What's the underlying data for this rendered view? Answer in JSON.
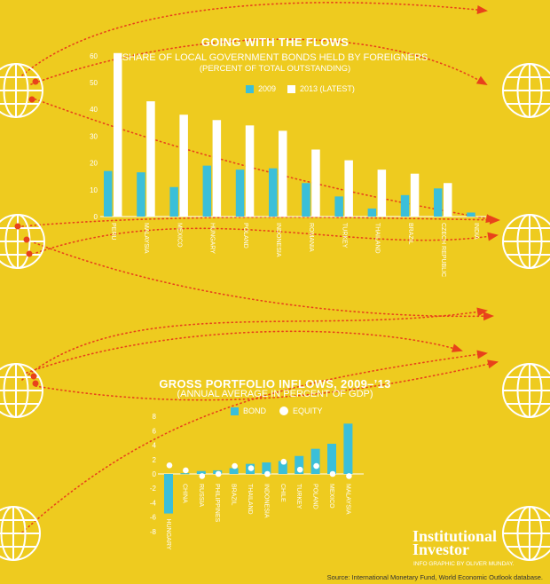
{
  "colors": {
    "background": "#eecb1f",
    "bond_cyan": "#3bbfd9",
    "white": "#ffffff",
    "arrow_red": "#e8421b"
  },
  "icons": [
    "globe-icon",
    "arrow-icon"
  ],
  "chart_data": [
    {
      "type": "bar",
      "title": "GOING WITH THE FLOWS",
      "subtitle": "SHARE OF LOCAL GOVERNMENT BONDS HELD BY FOREIGNERS",
      "subtitle2": "(PERCENT OF TOTAL OUTSTANDING)",
      "categories": [
        "PERU",
        "MALAYSIA",
        "MEXICO",
        "HUNGARY",
        "POLAND",
        "INDONESIA",
        "ROMANIA",
        "TURKEY",
        "THAILAND",
        "BRAZIL",
        "CZECH REPUBLIC",
        "INDIA"
      ],
      "series": [
        {
          "name": "2009",
          "values": [
            17,
            16.5,
            11,
            19,
            17.5,
            18,
            12.5,
            7.5,
            3,
            8,
            10.5,
            1.5
          ]
        },
        {
          "name": "2013 (LATEST)",
          "values": [
            61,
            43,
            38,
            36,
            34,
            32,
            25,
            21,
            17.5,
            16,
            12.5,
            0
          ]
        }
      ],
      "ylim": [
        0,
        60
      ],
      "yticks": [
        0,
        10,
        20,
        30,
        40,
        50,
        60
      ],
      "grid": false
    },
    {
      "type": "bar",
      "title": "GROSS PORTFOLIO INFLOWS, 2009–’13",
      "subtitle": "(ANNUAL AVERAGE IN PERCENT OF GDP)",
      "categories": [
        "HUNGARY",
        "CHINA",
        "RUSSIA",
        "PHILIPPINES",
        "BRAZIL",
        "THAILAND",
        "INDONESIA",
        "CHILE",
        "TURKEY",
        "POLAND",
        "MEXICO",
        "MALAYSIA"
      ],
      "series": [
        {
          "name": "BOND",
          "values": [
            -5.5,
            0.1,
            0.4,
            0.5,
            0.8,
            1.4,
            1.6,
            1.8,
            2.5,
            3.5,
            4.2,
            7
          ]
        },
        {
          "name": "EQUITY",
          "values": [
            1.2,
            0.5,
            -0.3,
            0,
            1.1,
            0.8,
            0,
            1.7,
            0.6,
            1.1,
            0,
            -0.3
          ]
        }
      ],
      "ylim": [
        -8,
        8
      ],
      "yticks": [
        -8,
        -6,
        -4,
        -2,
        0,
        2,
        4,
        6,
        8
      ],
      "tick_labels": [
        "-8",
        "-6",
        "-4",
        "-2",
        "0",
        "2",
        "4",
        "6",
        "8"
      ],
      "grid": false
    }
  ],
  "branding": {
    "line1": "Institutional",
    "line2": "Investor"
  },
  "credit": "INFO GRAPHIC BY OLIVER MUNDAY.",
  "source": "Source: International Monetary Fund, World Economic Outlook database."
}
